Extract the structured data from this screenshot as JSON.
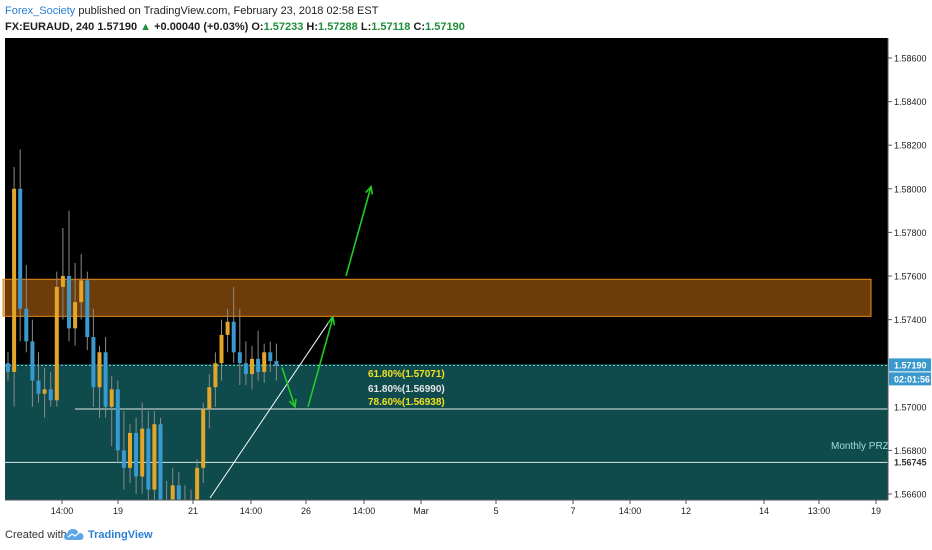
{
  "header": {
    "author": "Forex_Society",
    "published_text": "published on TradingView.com, February 23, 2018 02:58 EST",
    "symbol": "FX:EURAUD, 240",
    "price": "1.57190",
    "change_arrow": "▲",
    "change": "+0.00040 (+0.03%)",
    "open_label": "O:",
    "open": "1.57233",
    "high_label": "H:",
    "high": "1.57288",
    "low_label": "L:",
    "low": "1.57118",
    "close_label": "C:",
    "close": "1.57190"
  },
  "footer": {
    "created_with": "Created with",
    "brand": "TradingView",
    "logo_icon": "tradingview-cloud-icon"
  },
  "colors": {
    "background": "#000000",
    "teal_zone": "#0f4a4c",
    "orange_zone": "#c86e0f",
    "yellow_zone": "#caa826",
    "bull_candle": "#e3a62a",
    "bear_candle": "#3a99cf",
    "arrow": "#22cc22",
    "fib_text": "#f2e11f",
    "axis_text": "#222222"
  },
  "chart_data": {
    "type": "candlestick",
    "symbol": "FX:EURAUD",
    "timeframe": "240",
    "y_axis": {
      "ticks": [
        "1.58600",
        "1.58400",
        "1.58200",
        "1.58000",
        "1.57800",
        "1.57600",
        "1.57400",
        "1.56800",
        "1.56600"
      ],
      "tick_values": [
        1.586,
        1.584,
        1.582,
        1.58,
        1.578,
        1.576,
        1.574,
        1.568,
        1.566
      ],
      "partial_tick": "1.57000",
      "range": [
        1.5645,
        1.5875
      ]
    },
    "x_axis": {
      "ticks": [
        "14:00",
        "19",
        "21",
        "14:00",
        "26",
        "14:00",
        "Mar",
        "5",
        "7",
        "14:00",
        "12",
        "14",
        "13:00",
        "19"
      ]
    },
    "price_labels": {
      "current": "1.57190",
      "countdown": "02:01:56",
      "monthly": "1.56745"
    },
    "levels": [
      {
        "label": "61.80%(1.57071)",
        "value": 1.57071
      },
      {
        "label": "61.80%(1.56990)",
        "value": 1.5699
      },
      {
        "label": "78.60%(1.56938)",
        "value": 1.56938
      }
    ],
    "monthly_prz": {
      "label": "Monthly PRZ",
      "value": 1.56745
    },
    "zones": [
      {
        "name": "resistance",
        "from": 1.57415,
        "to": 1.57585
      },
      {
        "name": "fib-cluster",
        "from": 1.56938,
        "to": 1.57071
      },
      {
        "name": "teal-lower",
        "from": 1.5645,
        "to": 1.57195
      }
    ],
    "candles": [
      {
        "o": 1.572,
        "h": 1.5725,
        "l": 1.5712,
        "c": 1.5716
      },
      {
        "o": 1.5716,
        "h": 1.581,
        "l": 1.57,
        "c": 1.58
      },
      {
        "o": 1.58,
        "h": 1.5818,
        "l": 1.573,
        "c": 1.5745
      },
      {
        "o": 1.5745,
        "h": 1.5765,
        "l": 1.5725,
        "c": 1.573
      },
      {
        "o": 1.573,
        "h": 1.574,
        "l": 1.57,
        "c": 1.5712
      },
      {
        "o": 1.5712,
        "h": 1.5725,
        "l": 1.5702,
        "c": 1.5706
      },
      {
        "o": 1.5706,
        "h": 1.5718,
        "l": 1.5695,
        "c": 1.5708
      },
      {
        "o": 1.5708,
        "h": 1.5716,
        "l": 1.57,
        "c": 1.5703
      },
      {
        "o": 1.5703,
        "h": 1.5762,
        "l": 1.57,
        "c": 1.5755
      },
      {
        "o": 1.5755,
        "h": 1.5782,
        "l": 1.574,
        "c": 1.576
      },
      {
        "o": 1.576,
        "h": 1.579,
        "l": 1.573,
        "c": 1.5736
      },
      {
        "o": 1.5736,
        "h": 1.5766,
        "l": 1.5728,
        "c": 1.5748
      },
      {
        "o": 1.5748,
        "h": 1.577,
        "l": 1.574,
        "c": 1.5758
      },
      {
        "o": 1.5758,
        "h": 1.5762,
        "l": 1.5726,
        "c": 1.5732
      },
      {
        "o": 1.5732,
        "h": 1.5745,
        "l": 1.57,
        "c": 1.5709
      },
      {
        "o": 1.5709,
        "h": 1.5728,
        "l": 1.5695,
        "c": 1.5725
      },
      {
        "o": 1.5725,
        "h": 1.5732,
        "l": 1.5695,
        "c": 1.57
      },
      {
        "o": 1.57,
        "h": 1.5714,
        "l": 1.5682,
        "c": 1.5708
      },
      {
        "o": 1.5708,
        "h": 1.5712,
        "l": 1.5674,
        "c": 1.568
      },
      {
        "o": 1.568,
        "h": 1.5698,
        "l": 1.5662,
        "c": 1.5672
      },
      {
        "o": 1.5672,
        "h": 1.5692,
        "l": 1.5665,
        "c": 1.5688
      },
      {
        "o": 1.5688,
        "h": 1.5695,
        "l": 1.566,
        "c": 1.5668
      },
      {
        "o": 1.5668,
        "h": 1.5702,
        "l": 1.566,
        "c": 1.569
      },
      {
        "o": 1.569,
        "h": 1.5698,
        "l": 1.5655,
        "c": 1.5662
      },
      {
        "o": 1.5662,
        "h": 1.5698,
        "l": 1.5655,
        "c": 1.5692
      },
      {
        "o": 1.5692,
        "h": 1.5695,
        "l": 1.565,
        "c": 1.5656
      },
      {
        "o": 1.5656,
        "h": 1.5666,
        "l": 1.5645,
        "c": 1.5649
      },
      {
        "o": 1.5649,
        "h": 1.5672,
        "l": 1.5647,
        "c": 1.5664
      },
      {
        "o": 1.5664,
        "h": 1.567,
        "l": 1.565,
        "c": 1.5656
      },
      {
        "o": 1.5656,
        "h": 1.5664,
        "l": 1.5644,
        "c": 1.5652
      },
      {
        "o": 1.5652,
        "h": 1.5662,
        "l": 1.5647,
        "c": 1.5649
      },
      {
        "o": 1.5649,
        "h": 1.5676,
        "l": 1.5647,
        "c": 1.5672
      },
      {
        "o": 1.5672,
        "h": 1.5702,
        "l": 1.5665,
        "c": 1.5699
      },
      {
        "o": 1.5699,
        "h": 1.5715,
        "l": 1.569,
        "c": 1.5709
      },
      {
        "o": 1.5709,
        "h": 1.5725,
        "l": 1.57,
        "c": 1.572
      },
      {
        "o": 1.572,
        "h": 1.574,
        "l": 1.5712,
        "c": 1.5733
      },
      {
        "o": 1.5733,
        "h": 1.5745,
        "l": 1.5725,
        "c": 1.5739
      },
      {
        "o": 1.5739,
        "h": 1.5755,
        "l": 1.572,
        "c": 1.5725
      },
      {
        "o": 1.5725,
        "h": 1.5745,
        "l": 1.571,
        "c": 1.572
      },
      {
        "o": 1.572,
        "h": 1.573,
        "l": 1.571,
        "c": 1.5715
      },
      {
        "o": 1.5715,
        "h": 1.5728,
        "l": 1.5708,
        "c": 1.5722
      },
      {
        "o": 1.5722,
        "h": 1.5735,
        "l": 1.5712,
        "c": 1.5716
      },
      {
        "o": 1.5716,
        "h": 1.5729,
        "l": 1.5711,
        "c": 1.5725
      },
      {
        "o": 1.5725,
        "h": 1.573,
        "l": 1.5716,
        "c": 1.5721
      },
      {
        "o": 1.5721,
        "h": 1.5729,
        "l": 1.5712,
        "c": 1.5719
      }
    ]
  }
}
